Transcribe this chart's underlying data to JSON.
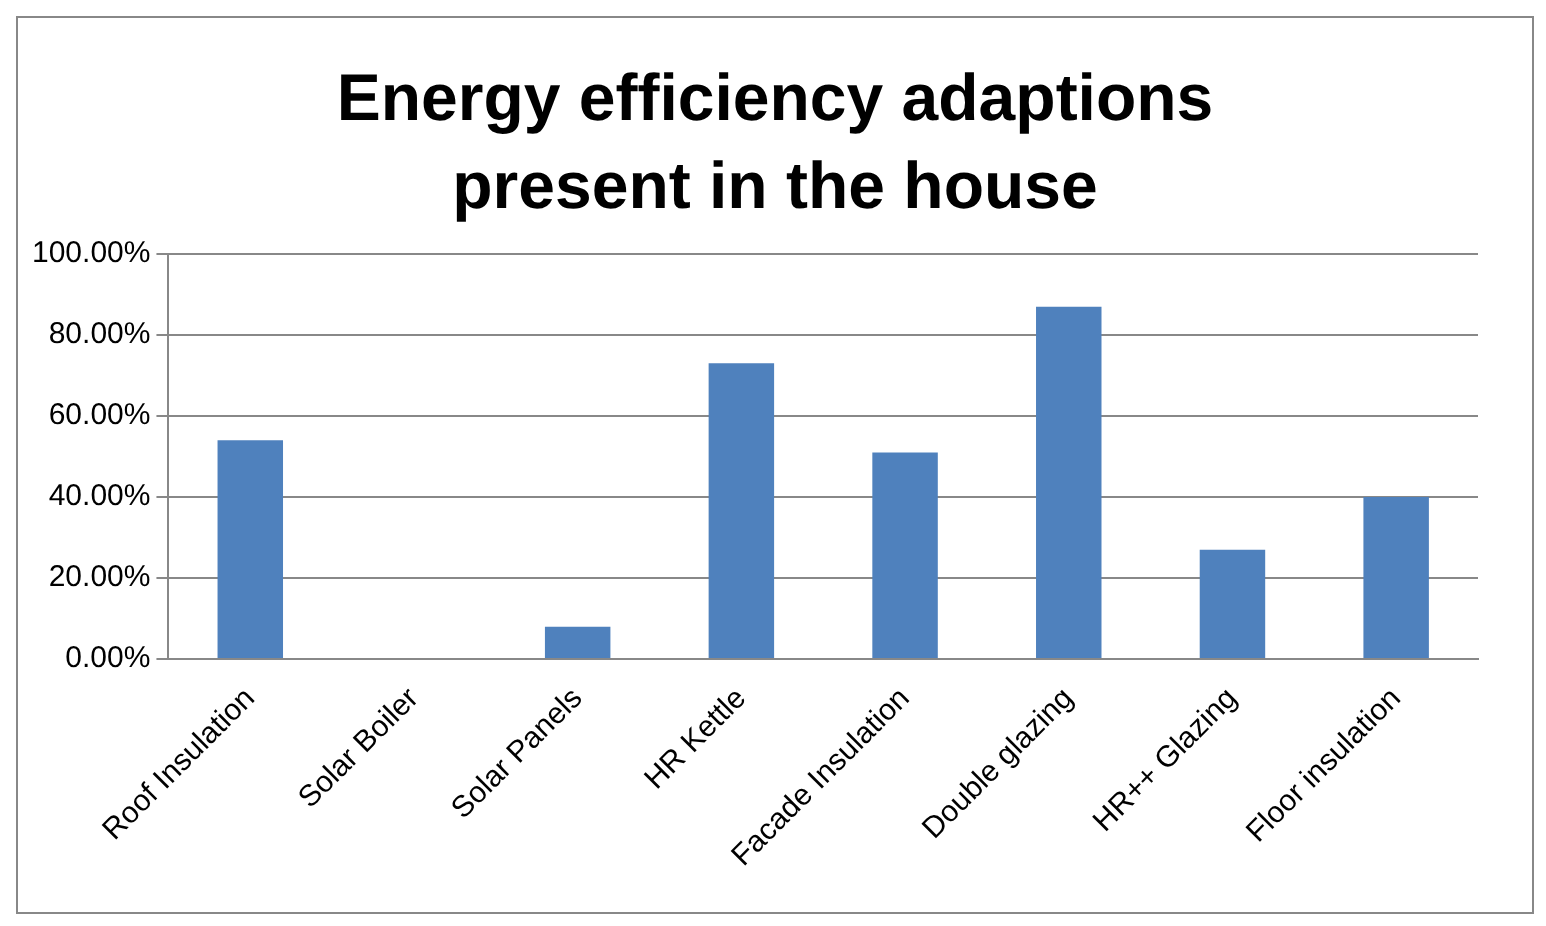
{
  "chart_data": {
    "type": "bar",
    "title": "Energy efficiency adaptions present in the house",
    "categories": [
      "Roof Insulation",
      "Solar Boiler",
      "Solar Panels",
      "HR Kettle",
      "Facade Insulation",
      "Double glazing",
      "HR++ Glazing",
      "Floor insulation"
    ],
    "values": [
      54,
      0,
      8,
      73,
      51,
      87,
      27,
      40
    ],
    "color": "#4f81bd",
    "ylim": [
      0,
      100
    ],
    "yticks": [
      {
        "value": 0,
        "label": "0.00%"
      },
      {
        "value": 20,
        "label": "20.00%"
      },
      {
        "value": 40,
        "label": "40.00%"
      },
      {
        "value": 60,
        "label": "60.00%"
      },
      {
        "value": 80,
        "label": "80.00%"
      },
      {
        "value": 100,
        "label": "100.00%"
      }
    ],
    "grid": "y"
  }
}
